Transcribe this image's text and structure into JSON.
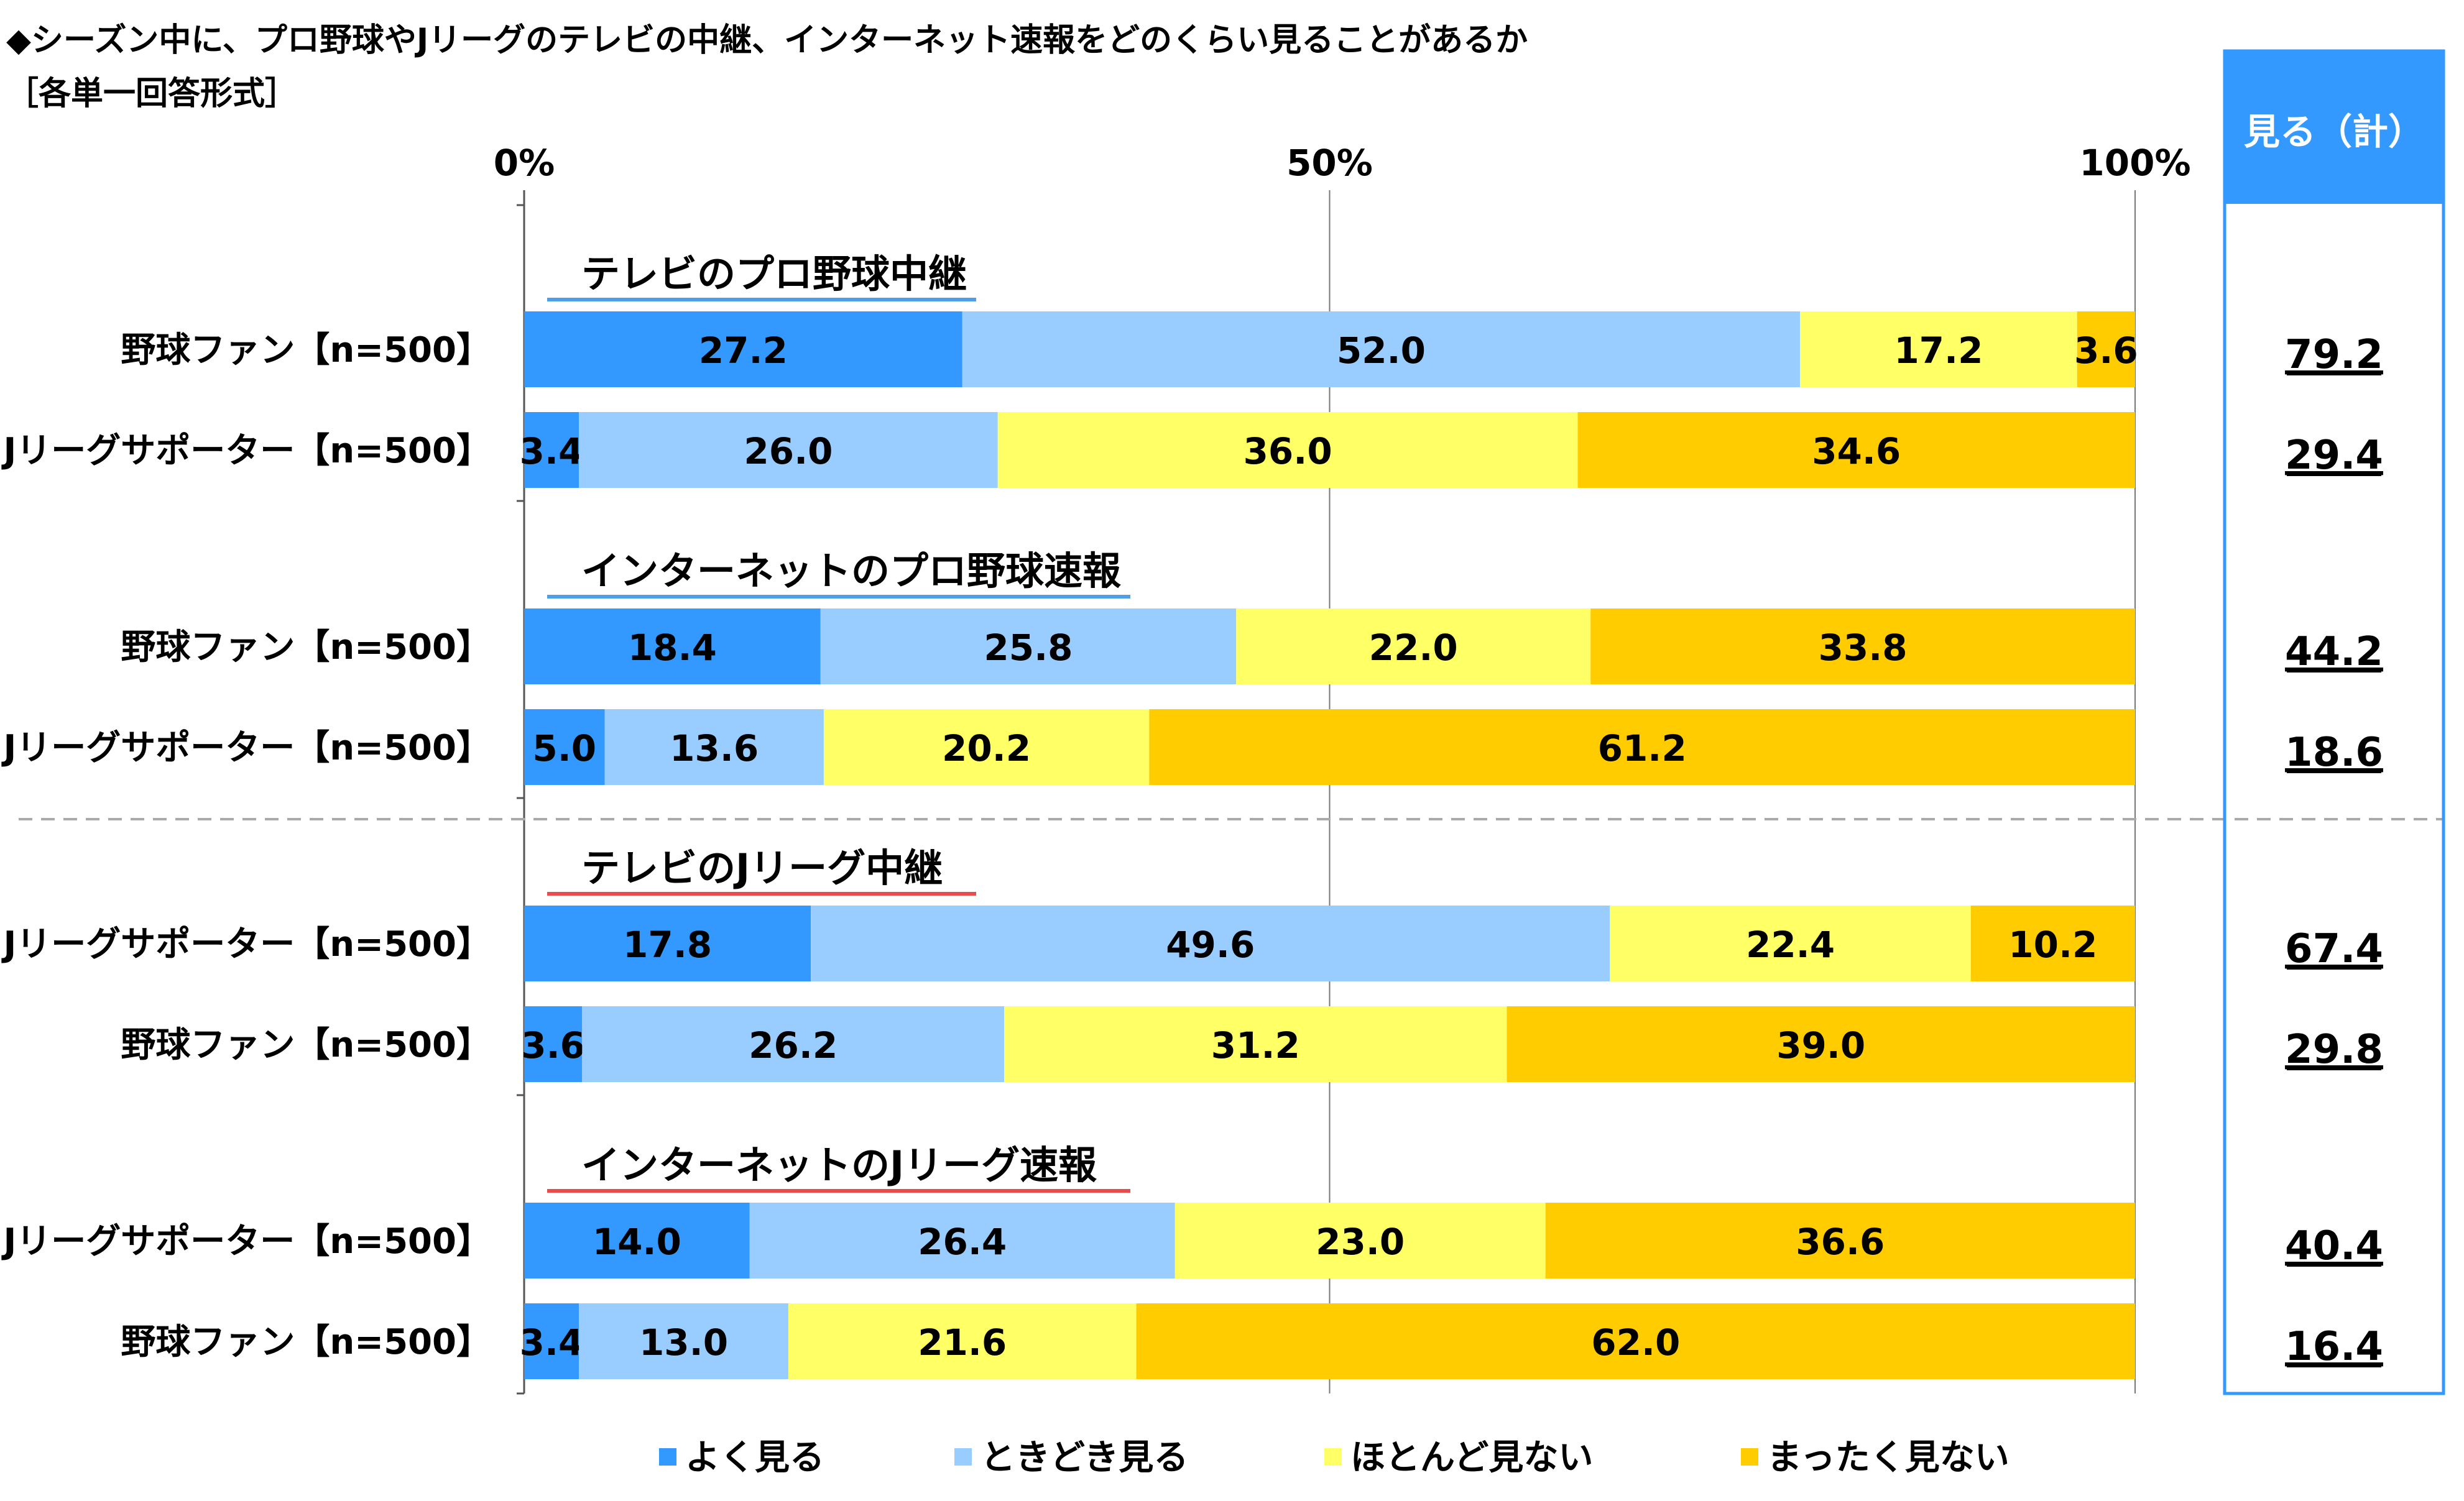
{
  "chart_data": {
    "type": "bar",
    "orientation": "horizontal",
    "stacked": true,
    "title": "◆シーズン中に、プロ野球やJリーグのテレビの中継、インターネット速報をどのくらい見ることがあるか",
    "subtitle": "［各単一回答形式］",
    "x_ticks": [
      "0%",
      "50%",
      "100%"
    ],
    "xlim": [
      0,
      100
    ],
    "total_header": "見る（計）",
    "legend_position": "bottom",
    "series": [
      {
        "name": "よく見る",
        "color": "#3399FF"
      },
      {
        "name": "ときどき見る",
        "color": "#99CCFF"
      },
      {
        "name": "ほとんど見ない",
        "color": "#FFFF66"
      },
      {
        "name": "まったく見ない",
        "color": "#FFCC00"
      }
    ],
    "groups": [
      {
        "title": "テレビのプロ野球中継",
        "underline_color": "#4F9EE8",
        "rows": [
          {
            "label": "野球ファン【n=500】",
            "values": [
              27.2,
              52.0,
              17.2,
              3.6
            ],
            "labels": [
              "27.2",
              "52.0",
              "17.2",
              "3.6"
            ],
            "total": "79.2"
          },
          {
            "label": "Jリーグサポーター【n=500】",
            "values": [
              3.4,
              26.0,
              36.0,
              34.6
            ],
            "labels": [
              "3.4",
              "26.0",
              "36.0",
              "34.6"
            ],
            "total": "29.4"
          }
        ]
      },
      {
        "title": "インターネットのプロ野球速報",
        "underline_color": "#4F9EE8",
        "rows": [
          {
            "label": "野球ファン【n=500】",
            "values": [
              18.4,
              25.8,
              22.0,
              33.8
            ],
            "labels": [
              "18.4",
              "25.8",
              "22.0",
              "33.8"
            ],
            "total": "44.2"
          },
          {
            "label": "Jリーグサポーター【n=500】",
            "values": [
              5.0,
              13.6,
              20.2,
              61.2
            ],
            "labels": [
              "5.0",
              "13.6",
              "20.2",
              "61.2"
            ],
            "total": "18.6"
          }
        ]
      },
      {
        "title": "テレビのJリーグ中継",
        "underline_color": "#E84C4C",
        "rows": [
          {
            "label": "Jリーグサポーター【n=500】",
            "values": [
              17.8,
              49.6,
              22.4,
              10.2
            ],
            "labels": [
              "17.8",
              "49.6",
              "22.4",
              "10.2"
            ],
            "total": "67.4"
          },
          {
            "label": "野球ファン【n=500】",
            "values": [
              3.6,
              26.2,
              31.2,
              39.0
            ],
            "labels": [
              "3.6",
              "26.2",
              "31.2",
              "39.0"
            ],
            "total": "29.8"
          }
        ]
      },
      {
        "title": "インターネットのJリーグ速報",
        "underline_color": "#E84C4C",
        "rows": [
          {
            "label": "Jリーグサポーター【n=500】",
            "values": [
              14.0,
              26.4,
              23.0,
              36.6
            ],
            "labels": [
              "14.0",
              "26.4",
              "23.0",
              "36.6"
            ],
            "total": "40.4"
          },
          {
            "label": "野球ファン【n=500】",
            "values": [
              3.4,
              13.0,
              21.6,
              62.0
            ],
            "labels": [
              "3.4",
              "13.0",
              "21.6",
              "62.0"
            ],
            "total": "16.4"
          }
        ]
      }
    ]
  }
}
